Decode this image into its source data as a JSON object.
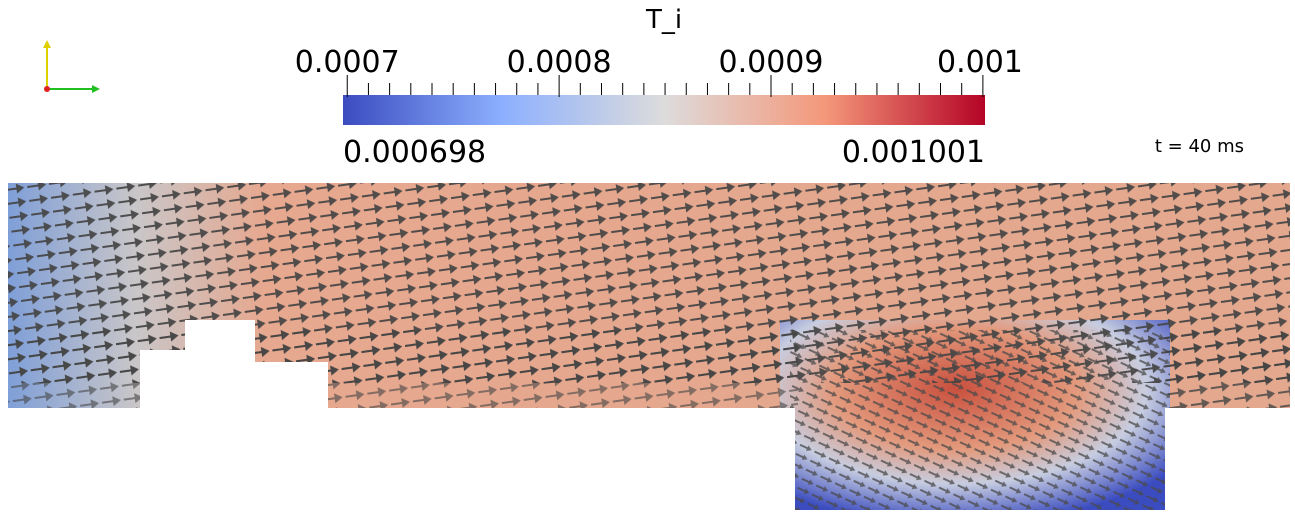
{
  "colorbar": {
    "title": "T_i",
    "ticks": [
      0.0007,
      0.0008,
      0.0009,
      0.001
    ],
    "range_min": 0.000698,
    "range_max": 0.001001
  },
  "annotation": "t = 40 ms"
}
